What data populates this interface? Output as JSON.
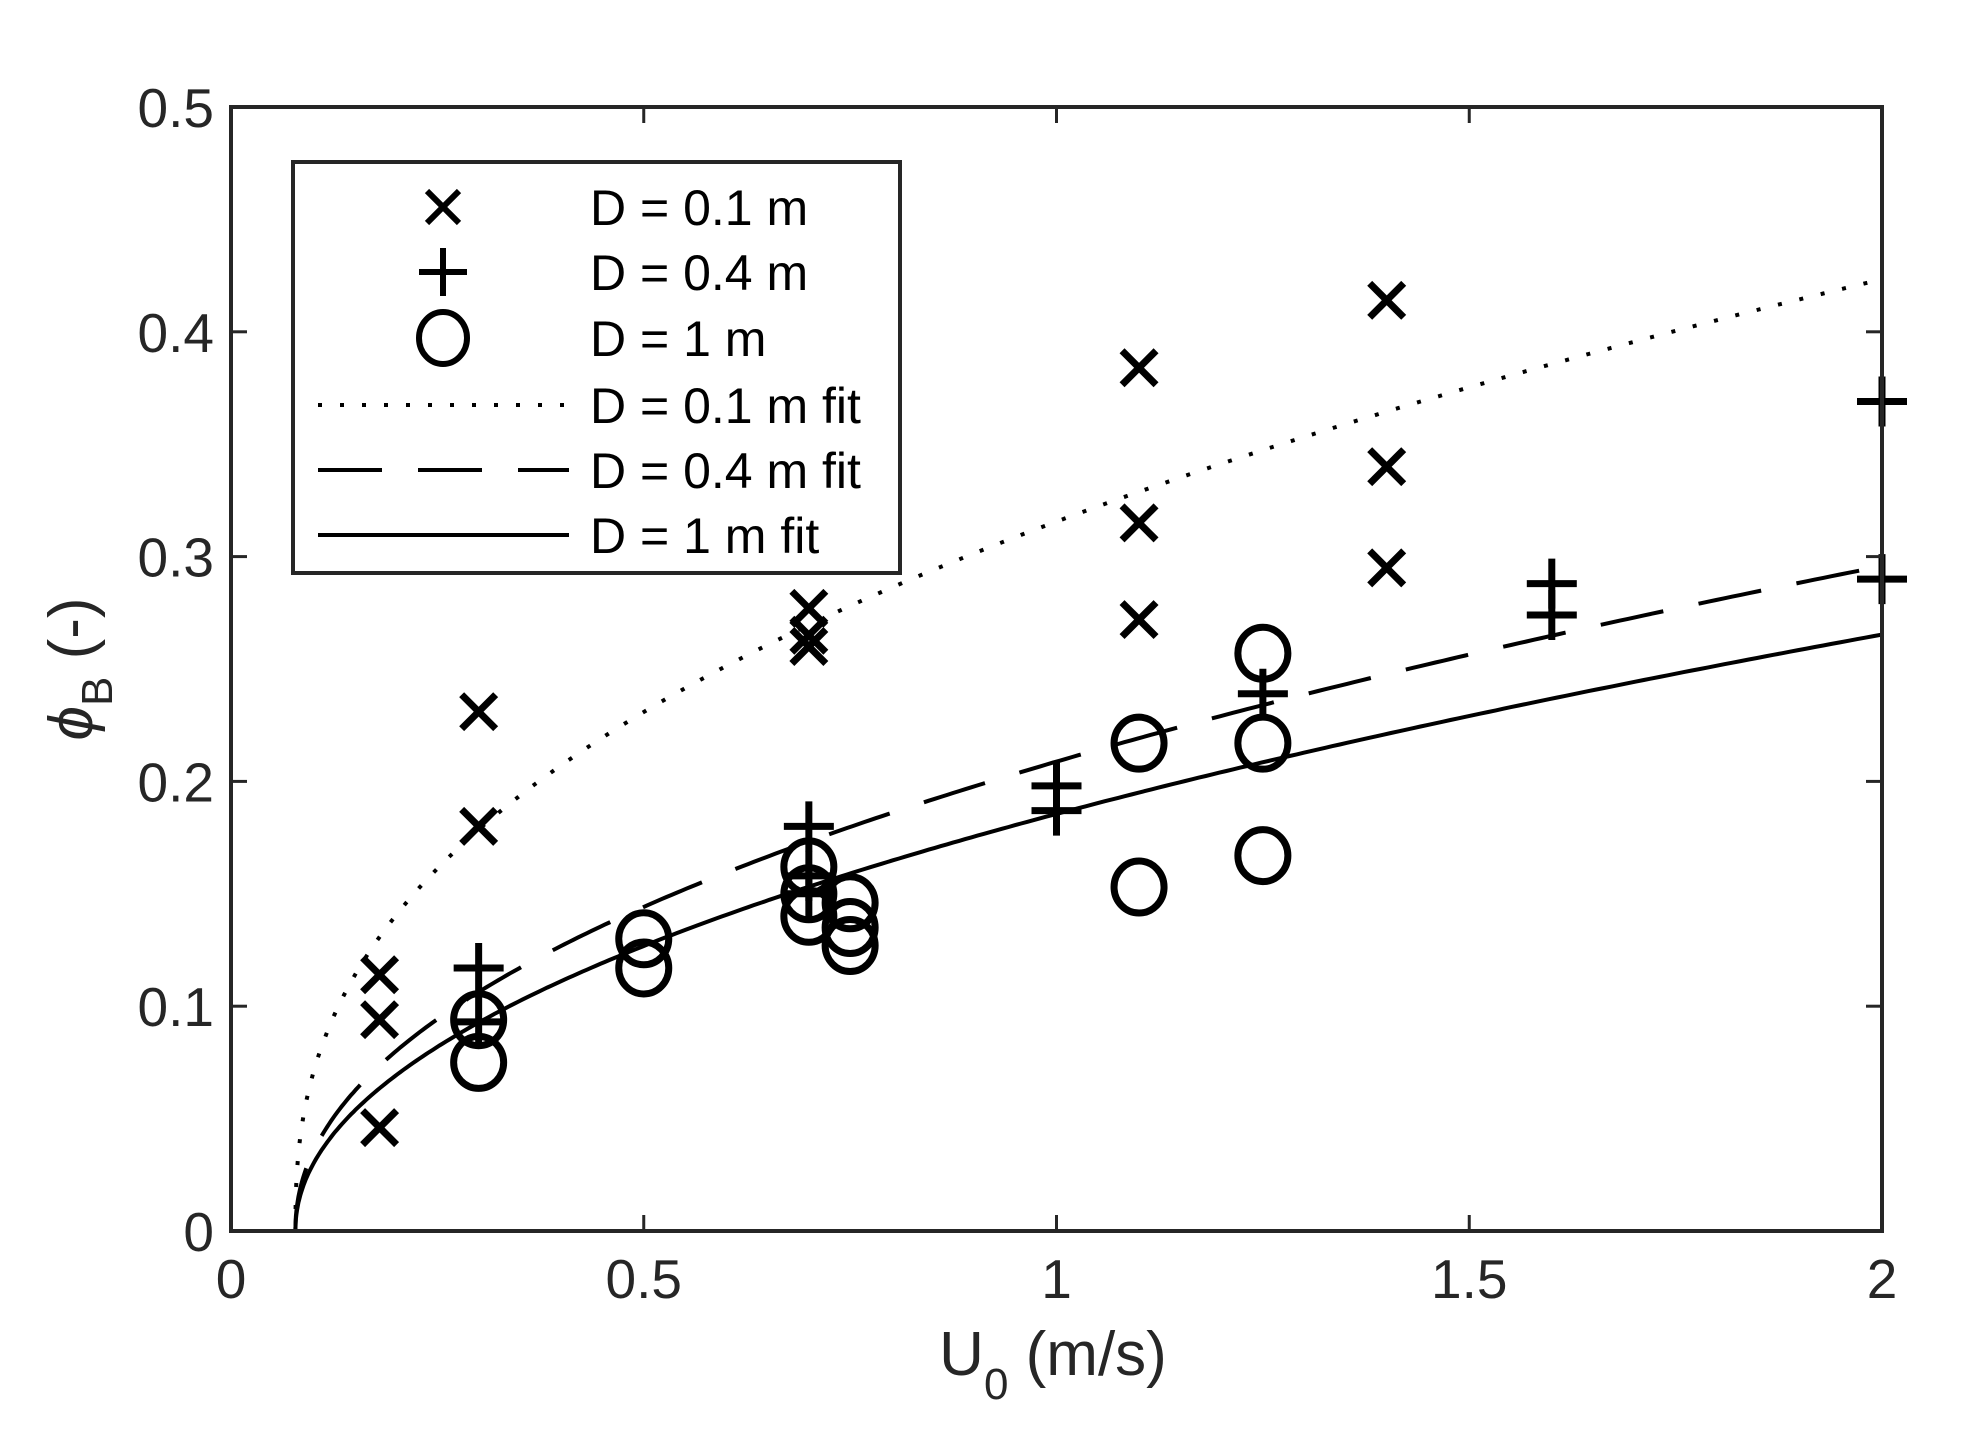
{
  "chart_data": {
    "type": "scatter",
    "title": "",
    "xlabel": "U",
    "xlabel_sub": "0",
    "xlabel_unit": " (m/s)",
    "ylabel": "ϕ",
    "ylabel_sub": "B",
    "ylabel_unit": " (-)",
    "xlim": [
      0,
      2
    ],
    "ylim": [
      0,
      0.5
    ],
    "xticks": [
      0,
      0.5,
      1,
      1.5,
      2
    ],
    "xtick_labels": [
      "0",
      "0.5",
      "1",
      "1.5",
      "2"
    ],
    "yticks": [
      0,
      0.1,
      0.2,
      0.3,
      0.4,
      0.5
    ],
    "ytick_labels": [
      "0",
      "0.1",
      "0.2",
      "0.3",
      "0.4",
      "0.5"
    ],
    "grid": false,
    "legend_position": "upper left",
    "series": [
      {
        "name": "D = 0.1 m",
        "marker": "x",
        "points": [
          [
            0.18,
            0.114
          ],
          [
            0.18,
            0.094
          ],
          [
            0.18,
            0.046
          ],
          [
            0.3,
            0.231
          ],
          [
            0.3,
            0.18
          ],
          [
            0.7,
            0.277
          ],
          [
            0.7,
            0.265
          ],
          [
            0.7,
            0.26
          ],
          [
            1.1,
            0.384
          ],
          [
            1.1,
            0.315
          ],
          [
            1.1,
            0.272
          ],
          [
            1.4,
            0.414
          ],
          [
            1.4,
            0.34
          ],
          [
            1.4,
            0.295
          ]
        ]
      },
      {
        "name": "D = 0.4 m",
        "marker": "+",
        "points": [
          [
            0.3,
            0.117
          ],
          [
            0.3,
            0.093
          ],
          [
            0.7,
            0.18
          ],
          [
            0.7,
            0.158
          ],
          [
            0.7,
            0.15
          ],
          [
            1.0,
            0.198
          ],
          [
            1.0,
            0.187
          ],
          [
            1.25,
            0.239
          ],
          [
            1.6,
            0.288
          ],
          [
            1.6,
            0.274
          ],
          [
            2.0,
            0.369
          ],
          [
            2.0,
            0.29
          ]
        ]
      },
      {
        "name": "D = 1 m",
        "marker": "o",
        "points": [
          [
            0.3,
            0.094
          ],
          [
            0.3,
            0.075
          ],
          [
            0.5,
            0.13
          ],
          [
            0.5,
            0.117
          ],
          [
            0.7,
            0.162
          ],
          [
            0.7,
            0.15
          ],
          [
            0.7,
            0.14
          ],
          [
            0.75,
            0.146
          ],
          [
            0.75,
            0.135
          ],
          [
            0.75,
            0.127
          ],
          [
            1.1,
            0.217
          ],
          [
            1.1,
            0.153
          ],
          [
            1.25,
            0.257
          ],
          [
            1.25,
            0.217
          ],
          [
            1.25,
            0.167
          ]
        ]
      },
      {
        "name": "D = 0.1 m fit",
        "line": "dotted",
        "model": {
          "a": 0.326,
          "u0": 0.078,
          "n": 0.4
        },
        "points": [
          [
            0.078,
            0.0
          ],
          [
            0.1,
            0.07
          ],
          [
            0.2,
            0.141
          ],
          [
            0.3,
            0.179
          ],
          [
            0.5,
            0.231
          ],
          [
            0.7,
            0.269
          ],
          [
            1.0,
            0.316
          ],
          [
            1.25,
            0.347
          ],
          [
            1.5,
            0.375
          ],
          [
            1.75,
            0.4
          ],
          [
            2.0,
            0.424
          ]
        ]
      },
      {
        "name": "D = 0.4 m fit",
        "line": "dashed",
        "model": {
          "a": 0.217,
          "u0": 0.078,
          "n": 0.474
        },
        "points": [
          [
            0.078,
            0.0
          ],
          [
            0.1,
            0.036
          ],
          [
            0.2,
            0.08
          ],
          [
            0.3,
            0.106
          ],
          [
            0.5,
            0.144
          ],
          [
            0.7,
            0.174
          ],
          [
            1.0,
            0.209
          ],
          [
            1.25,
            0.235
          ],
          [
            1.5,
            0.256
          ],
          [
            1.75,
            0.277
          ],
          [
            2.0,
            0.296
          ]
        ]
      },
      {
        "name": "D = 1 m fit",
        "line": "solid",
        "model": {
          "a": 0.193,
          "u0": 0.078,
          "n": 0.487
        },
        "points": [
          [
            0.078,
            0.0
          ],
          [
            0.1,
            0.03
          ],
          [
            0.2,
            0.068
          ],
          [
            0.3,
            0.092
          ],
          [
            0.5,
            0.127
          ],
          [
            0.7,
            0.152
          ],
          [
            1.0,
            0.186
          ],
          [
            1.25,
            0.21
          ],
          [
            1.5,
            0.229
          ],
          [
            1.75,
            0.249
          ],
          [
            2.0,
            0.266
          ]
        ]
      }
    ]
  },
  "legend": {
    "items": [
      {
        "label": "D = 0.1 m",
        "symbol": "x-marker"
      },
      {
        "label": "D = 0.4 m",
        "symbol": "plus-marker"
      },
      {
        "label": "D = 1 m",
        "symbol": "circle-marker"
      },
      {
        "label": "D = 0.1 m fit",
        "symbol": "dotted-line"
      },
      {
        "label": "D = 0.4 m fit",
        "symbol": "dashed-line"
      },
      {
        "label": "D = 1 m fit",
        "symbol": "solid-line"
      }
    ]
  },
  "colors": {
    "axes": "#262626",
    "data": "#000000",
    "background": "#ffffff"
  }
}
